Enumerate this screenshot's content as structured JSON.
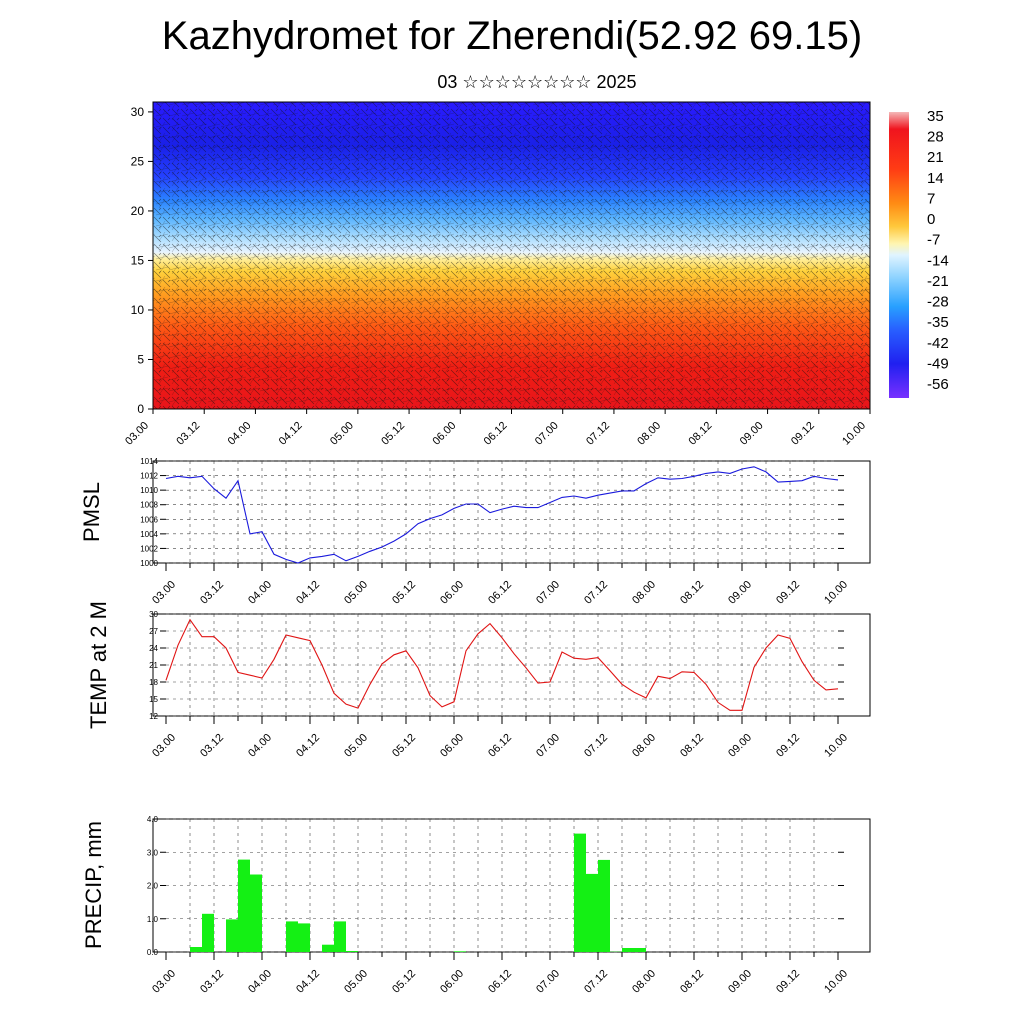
{
  "title": "Kazhydromet for Zherendi(52.92 69.15)",
  "subtitle": "03 ☆☆☆☆☆☆☆☆ 2025",
  "colorbar": {
    "labels": [
      "35",
      "28",
      "21",
      "14",
      "7",
      "0",
      "-7",
      "-14",
      "-21",
      "-28",
      "-35",
      "-42",
      "-49",
      "-56"
    ]
  },
  "chart_data": [
    {
      "type": "heatmap",
      "name": "cross-section",
      "xlabel": "",
      "ylabel": "",
      "x_tick_labels": [
        "03.00",
        "03.12",
        "04.00",
        "04.12",
        "05.00",
        "05.12",
        "06.00",
        "06.12",
        "07.00",
        "07.12",
        "08.00",
        "08.12",
        "09.00",
        "09.12",
        "10.00"
      ],
      "y_tick_labels": [
        "0",
        "5",
        "10",
        "15",
        "20",
        "25",
        "30"
      ],
      "ylim": [
        0,
        31
      ],
      "description_values": {
        "temperature_range": [
          -56,
          35
        ]
      }
    },
    {
      "type": "line",
      "ylabel": "PMSL",
      "ylim": [
        1000,
        1014
      ],
      "y_tick_labels": [
        "1000",
        "1002",
        "1004",
        "1006",
        "1008",
        "1010",
        "1012",
        "1014"
      ],
      "x_tick_labels": [
        "03.00",
        "03.12",
        "04.00",
        "04.12",
        "05.00",
        "05.12",
        "06.00",
        "06.12",
        "07.00",
        "07.12",
        "08.00",
        "08.12",
        "09.00",
        "09.12",
        "10.00"
      ],
      "x": [
        0,
        0.125,
        0.25,
        0.375,
        0.5,
        0.625,
        0.75,
        0.875,
        1.0,
        1.125,
        1.25,
        1.375,
        1.5,
        1.625,
        1.75,
        1.875,
        2.0,
        2.125,
        2.25,
        2.375,
        2.5,
        2.625,
        2.75,
        2.875,
        3.0,
        3.125,
        3.25,
        3.375,
        3.5,
        3.625,
        3.75,
        3.875,
        4.0,
        4.125,
        4.25,
        4.375,
        4.5,
        4.625,
        4.75,
        4.875,
        5.0,
        5.125,
        5.25,
        5.375,
        5.5,
        5.625,
        5.75,
        5.875,
        6.0,
        6.125,
        6.25,
        6.375,
        6.5,
        6.625,
        6.75,
        6.875,
        7.0
      ],
      "values": [
        1011.6,
        1011.9,
        1011.7,
        1011.9,
        1010.2,
        1008.9,
        1011.3,
        1004.0,
        1004.3,
        1001.2,
        1000.5,
        1000.0,
        1000.7,
        1000.9,
        1001.2,
        1000.3,
        1000.9,
        1001.6,
        1002.2,
        1003.0,
        1004.0,
        1005.4,
        1006.1,
        1006.6,
        1007.5,
        1008.1,
        1008.1,
        1006.9,
        1007.4,
        1007.8,
        1007.6,
        1007.6,
        1008.3,
        1009.0,
        1009.2,
        1008.9,
        1009.3,
        1009.6,
        1009.9,
        1009.9,
        1010.9,
        1011.7,
        1011.5,
        1011.6,
        1011.9,
        1012.3,
        1012.5,
        1012.3,
        1012.9,
        1013.2,
        1012.5,
        1011.1,
        1011.2,
        1011.3,
        1011.9,
        1011.6,
        1011.4
      ]
    },
    {
      "type": "line",
      "ylabel": "TEMP at 2 M",
      "ylim": [
        12,
        30
      ],
      "y_tick_labels": [
        "12",
        "15",
        "18",
        "21",
        "24",
        "27",
        "30"
      ],
      "x_tick_labels": [
        "03.00",
        "03.12",
        "04.00",
        "04.12",
        "05.00",
        "05.12",
        "06.00",
        "06.12",
        "07.00",
        "07.12",
        "08.00",
        "08.12",
        "09.00",
        "09.12",
        "10.00"
      ],
      "x": [
        0,
        0.125,
        0.25,
        0.375,
        0.5,
        0.625,
        0.75,
        0.875,
        1.0,
        1.125,
        1.25,
        1.375,
        1.5,
        1.625,
        1.75,
        1.875,
        2.0,
        2.125,
        2.25,
        2.375,
        2.5,
        2.625,
        2.75,
        2.875,
        3.0,
        3.125,
        3.25,
        3.375,
        3.5,
        3.625,
        3.75,
        3.875,
        4.0,
        4.125,
        4.25,
        4.375,
        4.5,
        4.625,
        4.75,
        4.875,
        5.0,
        5.125,
        5.25,
        5.375,
        5.5,
        5.625,
        5.75,
        5.875,
        6.0,
        6.125,
        6.25,
        6.375,
        6.5,
        6.625,
        6.75,
        6.875,
        7.0
      ],
      "values": [
        18.3,
        24.5,
        29.0,
        26.0,
        26.0,
        24.0,
        19.7,
        19.2,
        18.7,
        22.0,
        26.3,
        25.8,
        25.3,
        21.0,
        16.0,
        14.1,
        13.4,
        17.6,
        21.2,
        22.8,
        23.5,
        20.5,
        15.6,
        13.6,
        14.5,
        23.5,
        26.5,
        28.3,
        25.8,
        23.0,
        20.5,
        17.8,
        18.0,
        23.3,
        22.2,
        22.0,
        22.3,
        20.0,
        17.6,
        16.2,
        15.2,
        19.0,
        18.6,
        19.8,
        19.7,
        17.6,
        14.4,
        13.0,
        13.0,
        20.6,
        24.0,
        26.3,
        25.7,
        21.6,
        18.3,
        16.6,
        16.8
      ]
    },
    {
      "type": "bar",
      "ylabel": "PRECIP, mm",
      "ylim": [
        0,
        4
      ],
      "y_tick_labels": [
        "0.0",
        "1.0",
        "2.0",
        "3.0",
        "4.0"
      ],
      "x_tick_labels": [
        "03.00",
        "03.12",
        "04.00",
        "04.12",
        "05.00",
        "05.12",
        "06.00",
        "06.12",
        "07.00",
        "07.12",
        "08.00",
        "08.12",
        "09.00",
        "09.12",
        "10.00"
      ],
      "bar_width": 0.125,
      "x": [
        0.25,
        0.375,
        0.625,
        0.75,
        0.875,
        1.25,
        1.375,
        1.625,
        1.75,
        1.875,
        3.0,
        4.25,
        4.375,
        4.5,
        4.625,
        4.75,
        4.875
      ],
      "values": [
        0.15,
        1.15,
        0.98,
        2.78,
        2.33,
        0.92,
        0.86,
        0.22,
        0.92,
        0.03,
        0.02,
        3.56,
        2.35,
        2.77,
        0.01,
        0.12,
        0.12
      ]
    }
  ]
}
